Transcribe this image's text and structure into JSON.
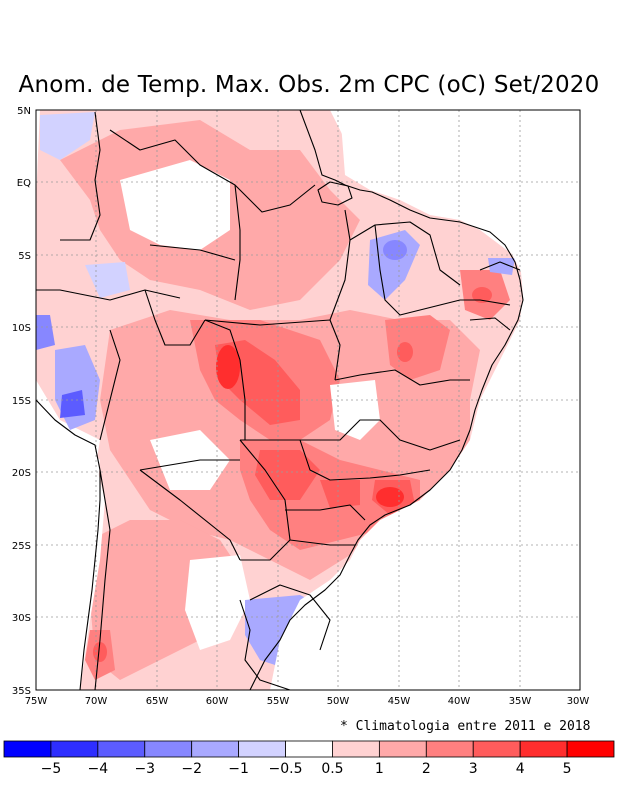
{
  "title": "Anom. de Temp. Max. Obs. 2m CPC (oC) Set/2020",
  "lat_labels": [
    "5N",
    "EQ",
    "5S",
    "10S",
    "15S",
    "20S",
    "25S",
    "30S",
    "35S"
  ],
  "lon_labels": [
    "75W",
    "70W",
    "65W",
    "60W",
    "55W",
    "50W",
    "45W",
    "40W",
    "35W",
    "30W"
  ],
  "footnote": "* Climatologia entre 2011 e 2018",
  "colorbar": {
    "colors": [
      "#0000ff",
      "#2e2eff",
      "#5c5cff",
      "#8787ff",
      "#a9a9ff",
      "#d2d2ff",
      "#ffffff",
      "#ffd2d2",
      "#ffa9a9",
      "#ff8080",
      "#ff5c5c",
      "#ff2e2e",
      "#ff0000"
    ],
    "tick_labels": [
      "−5",
      "−4",
      "−3",
      "−2",
      "−1",
      "−0.5",
      "0.5",
      "1",
      "2",
      "3",
      "4",
      "5"
    ]
  },
  "anomaly_regions": [
    {
      "name": "central-brazil-hotspot",
      "level": 4
    },
    {
      "name": "mato-grosso-core",
      "level": 5
    },
    {
      "name": "parana-hotspot",
      "level": 4
    },
    {
      "name": "minas-rio-hotspot",
      "level": 5
    },
    {
      "name": "bahia-hotspot",
      "level": 4
    },
    {
      "name": "pernambuco-hotspot",
      "level": 4
    },
    {
      "name": "chile-hotspot",
      "level": 4
    },
    {
      "name": "piaui-cool",
      "level": -2
    },
    {
      "name": "peru-cool",
      "level": -3
    },
    {
      "name": "uruguay-cool",
      "level": -2
    },
    {
      "name": "colombia-cool",
      "level": -1
    }
  ]
}
